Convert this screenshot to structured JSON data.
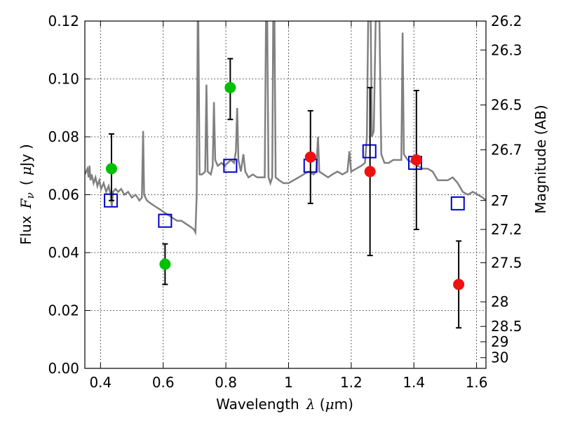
{
  "chart_data": {
    "type": "scatter",
    "title": "",
    "xlabel": {
      "prefix": "Wavelength",
      "symbol": "λ",
      "unit_open": " (",
      "unit_mu": "μ",
      "unit_rest": "m)"
    },
    "ylabel": {
      "prefix": "Flux",
      "symbol": "F",
      "symbol_sub": "ν",
      "unit_open": "( ",
      "unit_mu": "μ",
      "unit_rest": "Jy )"
    },
    "y2label": "Magnitude (AB)",
    "xlim": [
      0.35,
      1.63
    ],
    "ylim": [
      0.0,
      0.12
    ],
    "grid": true,
    "x_ticks": [
      {
        "value": 0.4,
        "label": "0.4"
      },
      {
        "value": 0.6,
        "label": "0.6"
      },
      {
        "value": 0.8,
        "label": "0.8"
      },
      {
        "value": 1.0,
        "label": "1"
      },
      {
        "value": 1.2,
        "label": "1.2"
      },
      {
        "value": 1.4,
        "label": "1.4"
      },
      {
        "value": 1.6,
        "label": "1.6"
      }
    ],
    "y_ticks": [
      {
        "value": 0.0,
        "label": "0.00"
      },
      {
        "value": 0.02,
        "label": "0.02"
      },
      {
        "value": 0.04,
        "label": "0.04"
      },
      {
        "value": 0.06,
        "label": "0.06"
      },
      {
        "value": 0.08,
        "label": "0.08"
      },
      {
        "value": 0.1,
        "label": "0.10"
      },
      {
        "value": 0.12,
        "label": "0.12"
      }
    ],
    "y2_ticks": [
      {
        "flux": 0.12,
        "label": "26.2"
      },
      {
        "flux": 0.11,
        "label": "26.3"
      },
      {
        "flux": 0.091,
        "label": "26.5"
      },
      {
        "flux": 0.0755,
        "label": "26.7"
      },
      {
        "flux": 0.058,
        "label": "27"
      },
      {
        "flux": 0.048,
        "label": "27.2"
      },
      {
        "flux": 0.0365,
        "label": "27.5"
      },
      {
        "flux": 0.023,
        "label": "28"
      },
      {
        "flux": 0.0145,
        "label": "28.5"
      },
      {
        "flux": 0.0092,
        "label": "29"
      },
      {
        "flux": 0.0037,
        "label": "30"
      }
    ],
    "colors": {
      "model": "#808080",
      "model_points": "#0000cc",
      "detections_optical": "#00c000",
      "detections_nir": "#ee1111",
      "error_bars": "#000000",
      "grid": "#000000"
    },
    "series": [
      {
        "kind": "model_spectrum",
        "points": [
          [
            0.35,
            0.067
          ],
          [
            0.358,
            0.069
          ],
          [
            0.362,
            0.066
          ],
          [
            0.365,
            0.07
          ],
          [
            0.368,
            0.065
          ],
          [
            0.372,
            0.067
          ],
          [
            0.378,
            0.064
          ],
          [
            0.384,
            0.066
          ],
          [
            0.39,
            0.063
          ],
          [
            0.396,
            0.065
          ],
          [
            0.402,
            0.062
          ],
          [
            0.41,
            0.064
          ],
          [
            0.418,
            0.061
          ],
          [
            0.426,
            0.063
          ],
          [
            0.432,
            0.06
          ],
          [
            0.436,
            0.056
          ],
          [
            0.44,
            0.061
          ],
          [
            0.448,
            0.062
          ],
          [
            0.456,
            0.061
          ],
          [
            0.466,
            0.062
          ],
          [
            0.476,
            0.06
          ],
          [
            0.488,
            0.061
          ],
          [
            0.5,
            0.059
          ],
          [
            0.512,
            0.06
          ],
          [
            0.524,
            0.058
          ],
          [
            0.532,
            0.059
          ],
          [
            0.536,
            0.082
          ],
          [
            0.539,
            0.06
          ],
          [
            0.548,
            0.058
          ],
          [
            0.56,
            0.057
          ],
          [
            0.574,
            0.056
          ],
          [
            0.588,
            0.055
          ],
          [
            0.602,
            0.054
          ],
          [
            0.616,
            0.053
          ],
          [
            0.63,
            0.052
          ],
          [
            0.644,
            0.051
          ],
          [
            0.658,
            0.051
          ],
          [
            0.672,
            0.05
          ],
          [
            0.686,
            0.049
          ],
          [
            0.698,
            0.048
          ],
          [
            0.703,
            0.047
          ],
          [
            0.707,
            0.06
          ],
          [
            0.71,
            0.12
          ],
          [
            0.712,
            0.12
          ],
          [
            0.716,
            0.067
          ],
          [
            0.724,
            0.067
          ],
          [
            0.734,
            0.068
          ],
          [
            0.738,
            0.098
          ],
          [
            0.742,
            0.068
          ],
          [
            0.752,
            0.067
          ],
          [
            0.758,
            0.07
          ],
          [
            0.762,
            0.092
          ],
          [
            0.766,
            0.072
          ],
          [
            0.774,
            0.07
          ],
          [
            0.786,
            0.071
          ],
          [
            0.796,
            0.07
          ],
          [
            0.806,
            0.071
          ],
          [
            0.816,
            0.072
          ],
          [
            0.826,
            0.071
          ],
          [
            0.832,
            0.075
          ],
          [
            0.836,
            0.09
          ],
          [
            0.84,
            0.072
          ],
          [
            0.848,
            0.068
          ],
          [
            0.856,
            0.074
          ],
          [
            0.862,
            0.068
          ],
          [
            0.872,
            0.066
          ],
          [
            0.886,
            0.067
          ],
          [
            0.9,
            0.066
          ],
          [
            0.914,
            0.066
          ],
          [
            0.924,
            0.066
          ],
          [
            0.928,
            0.12
          ],
          [
            0.932,
            0.12
          ],
          [
            0.936,
            0.066
          ],
          [
            0.942,
            0.064
          ],
          [
            0.948,
            0.066
          ],
          [
            0.951,
            0.12
          ],
          [
            0.955,
            0.12
          ],
          [
            0.959,
            0.066
          ],
          [
            0.97,
            0.065
          ],
          [
            0.984,
            0.064
          ],
          [
            1.0,
            0.064
          ],
          [
            1.016,
            0.065
          ],
          [
            1.032,
            0.066
          ],
          [
            1.048,
            0.067
          ],
          [
            1.064,
            0.068
          ],
          [
            1.08,
            0.067
          ],
          [
            1.088,
            0.068
          ],
          [
            1.094,
            0.08
          ],
          [
            1.098,
            0.068
          ],
          [
            1.112,
            0.067
          ],
          [
            1.126,
            0.066
          ],
          [
            1.14,
            0.067
          ],
          [
            1.156,
            0.068
          ],
          [
            1.172,
            0.067
          ],
          [
            1.188,
            0.068
          ],
          [
            1.194,
            0.075
          ],
          [
            1.2,
            0.068
          ],
          [
            1.216,
            0.069
          ],
          [
            1.232,
            0.07
          ],
          [
            1.244,
            0.071
          ],
          [
            1.25,
            0.08
          ],
          [
            1.254,
            0.12
          ],
          [
            1.262,
            0.12
          ],
          [
            1.266,
            0.08
          ],
          [
            1.272,
            0.082
          ],
          [
            1.278,
            0.12
          ],
          [
            1.29,
            0.12
          ],
          [
            1.296,
            0.074
          ],
          [
            1.306,
            0.071
          ],
          [
            1.32,
            0.071
          ],
          [
            1.334,
            0.072
          ],
          [
            1.348,
            0.072
          ],
          [
            1.36,
            0.072
          ],
          [
            1.364,
            0.116
          ],
          [
            1.368,
            0.074
          ],
          [
            1.38,
            0.072
          ],
          [
            1.396,
            0.071
          ],
          [
            1.412,
            0.07
          ],
          [
            1.428,
            0.069
          ],
          [
            1.444,
            0.069
          ],
          [
            1.46,
            0.068
          ],
          [
            1.476,
            0.065
          ],
          [
            1.492,
            0.065
          ],
          [
            1.508,
            0.065
          ],
          [
            1.524,
            0.066
          ],
          [
            1.54,
            0.064
          ],
          [
            1.556,
            0.061
          ],
          [
            1.572,
            0.06
          ],
          [
            1.588,
            0.061
          ],
          [
            1.604,
            0.06
          ],
          [
            1.62,
            0.059
          ],
          [
            1.63,
            0.058
          ]
        ]
      },
      {
        "kind": "model_photometry",
        "points": [
          {
            "x": 0.433,
            "y": 0.058
          },
          {
            "x": 0.606,
            "y": 0.051
          },
          {
            "x": 0.814,
            "y": 0.07
          },
          {
            "x": 1.07,
            "y": 0.07
          },
          {
            "x": 1.258,
            "y": 0.075
          },
          {
            "x": 1.404,
            "y": 0.071
          },
          {
            "x": 1.54,
            "y": 0.057
          }
        ]
      },
      {
        "kind": "detections_optical",
        "points": [
          {
            "x": 0.435,
            "y": 0.069,
            "yerr_low": 0.058,
            "yerr_high": 0.081
          },
          {
            "x": 0.606,
            "y": 0.036,
            "yerr_low": 0.029,
            "yerr_high": 0.043
          },
          {
            "x": 0.814,
            "y": 0.097,
            "yerr_low": 0.086,
            "yerr_high": 0.107
          }
        ]
      },
      {
        "kind": "detections_nir",
        "points": [
          {
            "x": 1.07,
            "y": 0.073,
            "yerr_low": 0.057,
            "yerr_high": 0.089
          },
          {
            "x": 1.26,
            "y": 0.068,
            "yerr_low": 0.039,
            "yerr_high": 0.097
          },
          {
            "x": 1.408,
            "y": 0.072,
            "yerr_low": 0.048,
            "yerr_high": 0.096
          },
          {
            "x": 1.543,
            "y": 0.029,
            "yerr_low": 0.014,
            "yerr_high": 0.044
          }
        ]
      }
    ]
  }
}
